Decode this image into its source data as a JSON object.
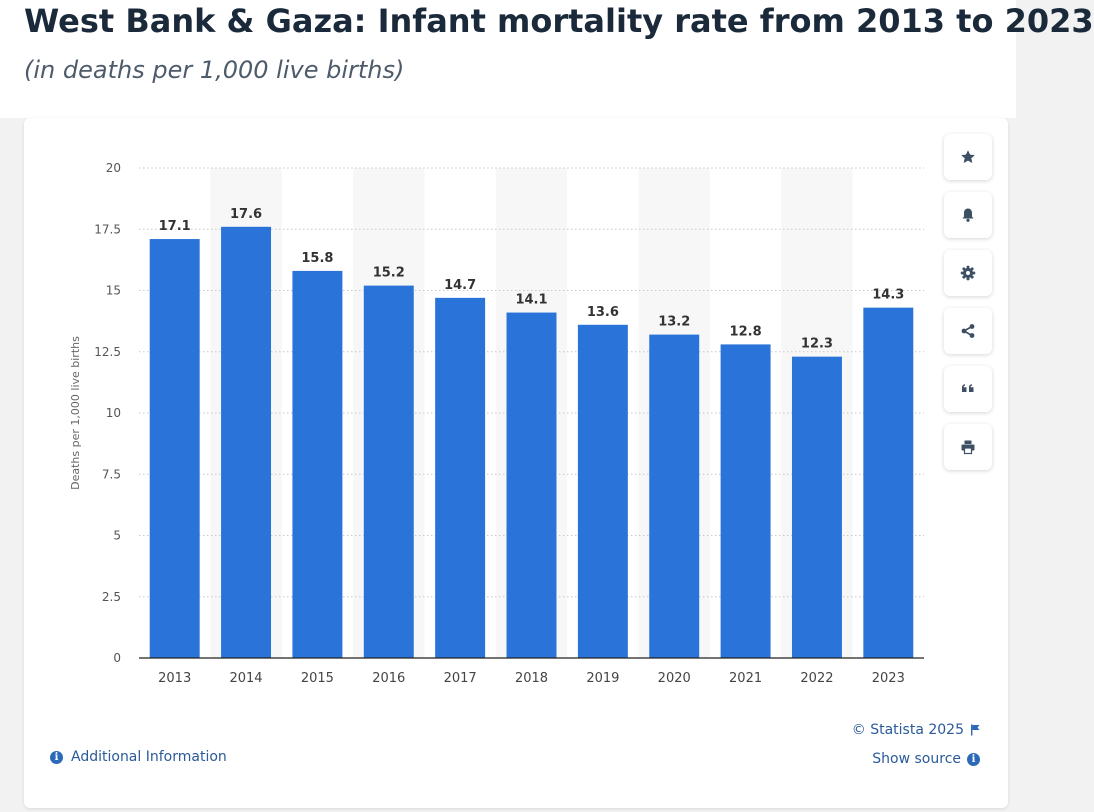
{
  "header": {
    "title": "West Bank & Gaza: Infant mortality rate from 2013 to 2023",
    "subtitle": "(in deaths per 1,000 live births)"
  },
  "toolbar": {
    "buttons": [
      {
        "name": "favorite-button",
        "icon": "star-icon"
      },
      {
        "name": "notification-button",
        "icon": "bell-icon"
      },
      {
        "name": "settings-button",
        "icon": "gear-icon"
      },
      {
        "name": "share-button",
        "icon": "share-icon"
      },
      {
        "name": "cite-button",
        "icon": "quote-icon"
      },
      {
        "name": "print-button",
        "icon": "printer-icon"
      }
    ]
  },
  "footer": {
    "copyright": "© Statista 2025",
    "show_source": "Show source",
    "additional_info": "Additional Information"
  },
  "colors": {
    "bar": "#2a73d9",
    "band": "#f7f7f7",
    "grid": "#c8c8c8",
    "link": "#2a5a9a"
  },
  "chart_data": {
    "type": "bar",
    "categories": [
      "2013",
      "2014",
      "2015",
      "2016",
      "2017",
      "2018",
      "2019",
      "2020",
      "2021",
      "2022",
      "2023"
    ],
    "values": [
      17.1,
      17.6,
      15.8,
      15.2,
      14.7,
      14.1,
      13.6,
      13.2,
      12.8,
      12.3,
      14.3
    ],
    "value_labels": [
      "17.1",
      "17.6",
      "15.8",
      "15.2",
      "14.7",
      "14.1",
      "13.6",
      "13.2",
      "12.8",
      "12.3",
      "14.3"
    ],
    "ylabel": "Deaths per 1,000 live births",
    "ylim": [
      0,
      20
    ],
    "yticks": [
      "0",
      "2.5",
      "5",
      "7.5",
      "10",
      "12.5",
      "15",
      "17.5",
      "20"
    ],
    "grid": true,
    "alternating_bands": true
  }
}
